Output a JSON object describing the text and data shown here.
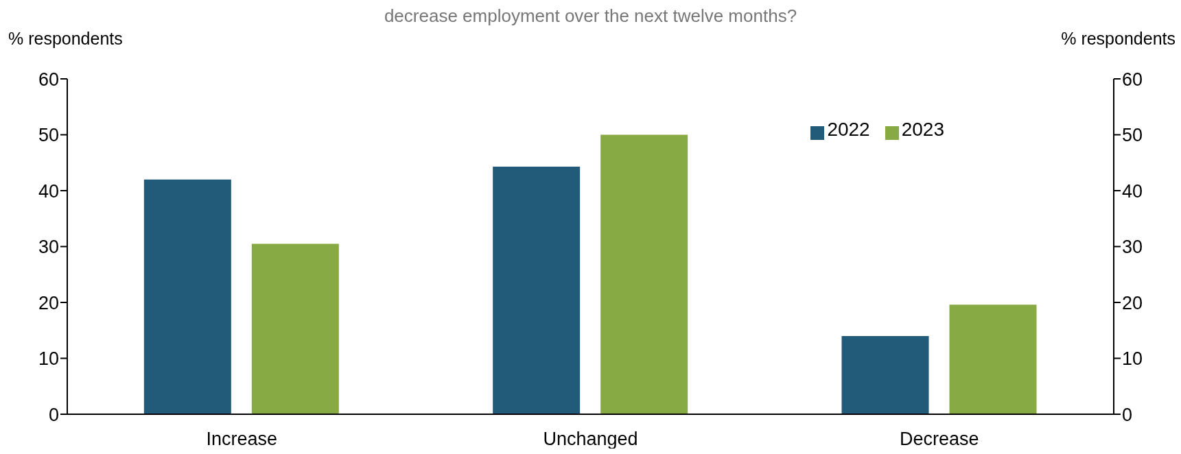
{
  "chart_data": {
    "type": "bar",
    "title": "decrease employment over the next twelve months?",
    "ylabel": "% respondents",
    "y2label": "% respondents",
    "categories": [
      "Increase",
      "Unchanged",
      "Decrease"
    ],
    "series": [
      {
        "name": "2022",
        "color": "#225b79",
        "values": [
          42,
          44.3,
          14
        ]
      },
      {
        "name": "2023",
        "color": "#88aa44",
        "values": [
          30.5,
          50,
          19.6
        ]
      }
    ],
    "ylim": [
      0,
      60
    ],
    "yticks": [
      0,
      10,
      20,
      30,
      40,
      50,
      60
    ],
    "y2lim": [
      0,
      60
    ],
    "y2ticks": [
      0,
      10,
      20,
      30,
      40,
      50,
      60
    ],
    "grid": false,
    "legend": "top right"
  }
}
